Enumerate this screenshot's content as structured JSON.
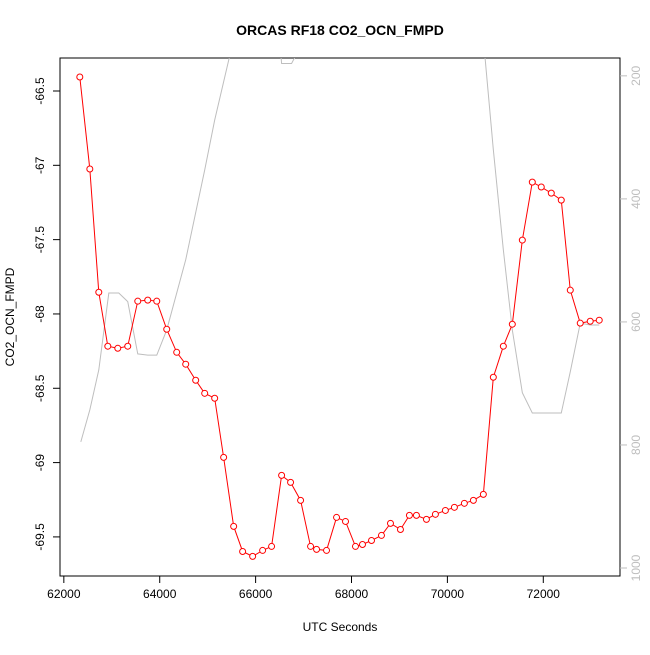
{
  "chart_data": {
    "type": "line",
    "title": "ORCAS RF18 CO2_OCN_FMPD",
    "x_label": "UTC Seconds",
    "y_label": "CO2_OCN_FMPD",
    "xlim": [
      61920,
      73600
    ],
    "ylim": [
      -69.763,
      -66.278
    ],
    "y2lim": [
      1013,
      171
    ],
    "xticks": [
      62000,
      64000,
      66000,
      68000,
      70000,
      72000
    ],
    "yticks": [
      -69.5,
      -69.0,
      -68.5,
      -68.0,
      -67.5,
      -67.0,
      -66.5
    ],
    "y2ticks": [
      200,
      400,
      600,
      800,
      1000
    ],
    "series": [
      {
        "name": "CO2_OCN_FMPD",
        "color": "#ff0000",
        "markers": true,
        "x": [
          62333,
          62542,
          62729,
          62917,
          63125,
          63333,
          63542,
          63750,
          63938,
          64146,
          64354,
          64542,
          64750,
          64938,
          65146,
          65333,
          65542,
          65729,
          65938,
          66146,
          66333,
          66542,
          66729,
          66938,
          67146,
          67271,
          67479,
          67688,
          67875,
          68083,
          68229,
          68417,
          68625,
          68813,
          69021,
          69208,
          69354,
          69563,
          69750,
          69958,
          70146,
          70354,
          70542,
          70750,
          70958,
          71167,
          71354,
          71563,
          71771,
          71958,
          72167,
          72375,
          72563,
          72771,
          72979,
          73167
        ],
        "values": [
          -66.406,
          -67.025,
          -67.854,
          -68.217,
          -68.231,
          -68.217,
          -67.914,
          -67.907,
          -67.914,
          -68.103,
          -68.258,
          -68.338,
          -68.446,
          -68.534,
          -68.567,
          -68.965,
          -69.429,
          -69.598,
          -69.631,
          -69.591,
          -69.564,
          -69.086,
          -69.133,
          -69.254,
          -69.564,
          -69.584,
          -69.591,
          -69.369,
          -69.396,
          -69.564,
          -69.551,
          -69.524,
          -69.49,
          -69.409,
          -69.45,
          -69.355,
          -69.355,
          -69.382,
          -69.348,
          -69.322,
          -69.301,
          -69.274,
          -69.254,
          -69.214,
          -68.426,
          -68.217,
          -68.069,
          -67.503,
          -67.113,
          -67.146,
          -67.187,
          -67.234,
          -67.84,
          -68.062,
          -68.049,
          -68.042
        ]
      },
      {
        "color": "#bebebe",
        "axis": "y2",
        "markers": false,
        "x": [
          62354,
          62542,
          62729,
          62938,
          63146,
          63333,
          63542,
          63750,
          63938,
          64146,
          64542,
          64938,
          65146,
          65542,
          66500,
          66542,
          66750,
          66850,
          68813,
          70750,
          70958,
          71167,
          71354,
          71563,
          71771,
          72375,
          72563,
          72771,
          72979,
          73167
        ],
        "values": [
          795,
          743,
          678,
          553,
          553,
          567,
          652,
          654,
          654,
          613,
          499,
          353,
          272,
          140,
          140,
          180,
          180,
          165,
          165,
          140,
          320,
          483,
          613,
          715,
          748,
          748,
          681,
          602,
          605,
          605
        ]
      }
    ]
  }
}
